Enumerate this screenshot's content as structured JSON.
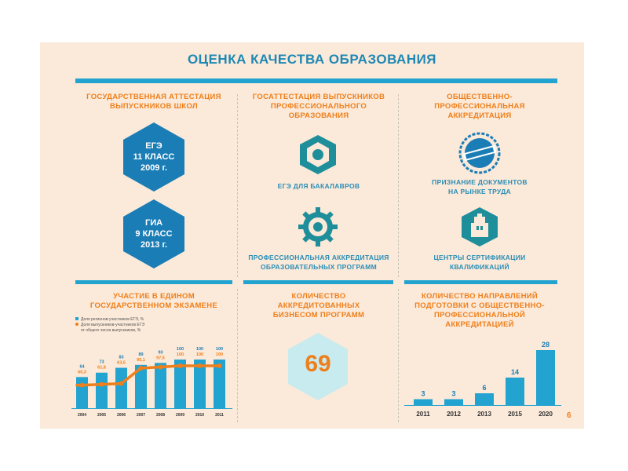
{
  "page": {
    "title": "ОЦЕНКА КАЧЕСТВА ОБРАЗОВАНИЯ",
    "page_number": "6"
  },
  "columns": {
    "left": {
      "heading": [
        "ГОСУДАРСТВЕННАЯ АТТЕСТАЦИЯ",
        "ВЫПУСКНИКОВ ШКОЛ"
      ],
      "hex1": [
        "ЕГЭ",
        "11 КЛАСС",
        "2009 г."
      ],
      "hex2": [
        "ГИА",
        "9 КЛАСС",
        "2013 г."
      ]
    },
    "middle": {
      "heading": [
        "ГОСАТТЕСТАЦИЯ ВЫПУСКНИКОВ",
        "ПРОФЕССИОНАЛЬНОГО",
        "ОБРАЗОВАНИЯ"
      ],
      "item1": "ЕГЭ ДЛЯ БАКАЛАВРОВ",
      "item2": [
        "ПРОФЕССИОНАЛЬНАЯ АККРЕДИТАЦИЯ",
        "ОБРАЗОВАТЕЛЬНЫХ ПРОГРАММ"
      ]
    },
    "right": {
      "heading": [
        "ОБЩЕСТВЕННО-",
        "ПРОФЕССИОНАЛЬНАЯ",
        "АККРЕДИТАЦИЯ"
      ],
      "item1": [
        "ПРИЗНАНИЕ ДОКУМЕНТОВ",
        "НА РЫНКЕ ТРУДА"
      ],
      "item2": [
        "ЦЕНТРЫ СЕРТИФИКАЦИИ",
        "КВАЛИФИКАЦИЙ"
      ]
    }
  },
  "bottom": {
    "left_heading": [
      "УЧАСТИЕ В ЕДИНОМ",
      "ГОСУДАРСТВЕННОМ ЭКЗАМЕНЕ"
    ],
    "legend_bar": "Доля регионов-участников ЕГЭ, %",
    "legend_line": [
      "Доля выпускников-участников ЕГЭ",
      "от общего числа выпускников, %"
    ],
    "middle_heading": [
      "КОЛИЧЕСТВО",
      "АККРЕДИТОВАННЫХ",
      "БИЗНЕСОМ ПРОГРАММ"
    ],
    "middle_value": "69",
    "right_heading": [
      "КОЛИЧЕСТВО НАПРАВЛЕНИЙ",
      "ПОДГОТОВКИ С ОБЩЕСТВЕННО-",
      "ПРОФЕССИОНАЛЬНОЙ АККРЕДИТАЦИЕЙ"
    ]
  },
  "colors": {
    "accent_blue": "#23a3d0",
    "hex_blue": "#1b7db5",
    "teal": "#1e8f9a",
    "orange": "#ef7f1a",
    "background": "#fbe9d9"
  },
  "icons": [
    "hex-nut-icon",
    "gear-icon",
    "stamp-icon",
    "tower-icon"
  ],
  "chart_data": [
    {
      "type": "bar",
      "categories": [
        "2004",
        "2005",
        "2006",
        "2007",
        "2008",
        "2009",
        "2010",
        "2011"
      ],
      "series": [
        {
          "name": "Доля регионов-участников ЕГЭ, %",
          "values": [
            64,
            73,
            83,
            89,
            93,
            100,
            100,
            100
          ],
          "labels": [
            "64",
            "73",
            "83",
            "89",
            "93",
            "100",
            "100",
            "100"
          ]
        },
        {
          "name": "Доля выпускников-участников ЕГЭ от общего числа выпускников, %",
          "type": "line",
          "values": [
            60.3,
            61.8,
            63.5,
            95.1,
            97.5,
            100,
            100,
            100
          ],
          "labels": [
            "60,3",
            "61,8",
            "63,5",
            "95,1",
            "97,5",
            "100",
            "100",
            "100"
          ]
        }
      ],
      "ylim": [
        0,
        100
      ]
    },
    {
      "type": "bar",
      "categories": [
        "2011",
        "2012",
        "2013",
        "2015",
        "2020"
      ],
      "values": [
        3,
        3,
        6,
        14,
        28
      ],
      "labels": [
        "3",
        "3",
        "6",
        "14",
        "28"
      ],
      "ylim": [
        0,
        28
      ]
    }
  ]
}
